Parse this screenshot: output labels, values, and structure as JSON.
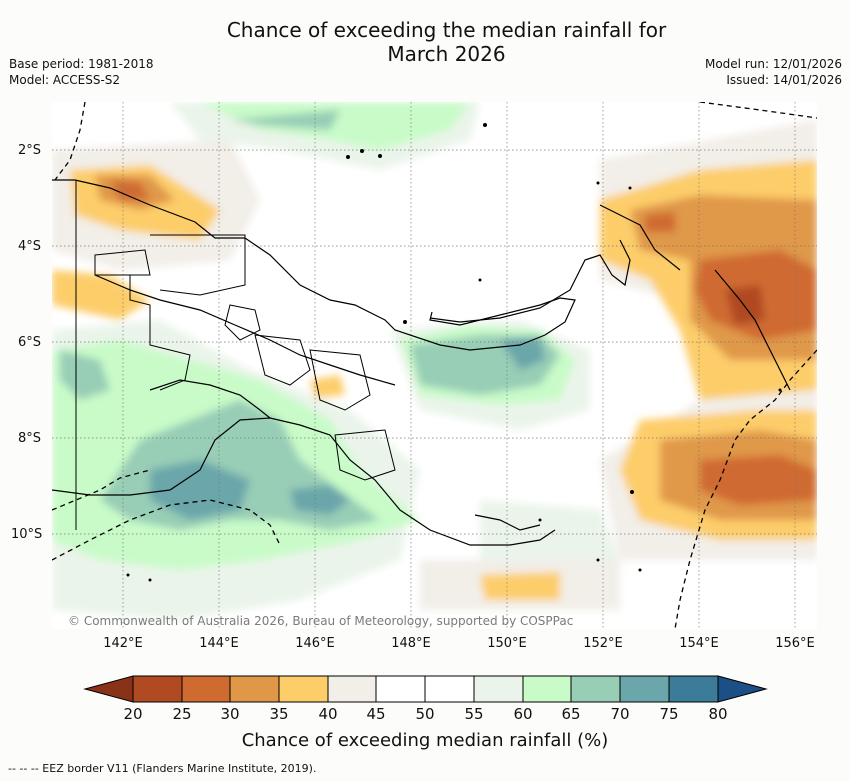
{
  "title_line1": "Chance of exceeding the median rainfall for",
  "title_line2": "March 2026",
  "base_period": "Base period: 1981-2018",
  "model": "Model: ACCESS-S2",
  "model_run": "Model run: 12/01/2026",
  "issued": "Issued: 14/01/2026",
  "copyright": "© Commonwealth of Australia 2026, Bureau of Meteorology, supported by COSPPac",
  "lat_labels": [
    "2°S",
    "4°S",
    "6°S",
    "8°S",
    "10°S"
  ],
  "lon_labels": [
    "142°E",
    "144°E",
    "146°E",
    "148°E",
    "150°E",
    "152°E",
    "154°E",
    "156°E"
  ],
  "colorbar": {
    "ticks": [
      "20",
      "25",
      "30",
      "35",
      "40",
      "45",
      "50",
      "55",
      "60",
      "65",
      "70",
      "75",
      "80"
    ],
    "colors": [
      "#8a3218",
      "#b04a22",
      "#cf6a30",
      "#e09848",
      "#fdcd6a",
      "#f2eee8",
      "#ffffff",
      "#ffffff",
      "#eaf4ea",
      "#c8fbc8",
      "#98cdb6",
      "#6aa6aa",
      "#3c7c98",
      "#1c4f86"
    ],
    "label": "Chance of exceeding median rainfall (%)"
  },
  "footer": "--  --  -- EEZ border V11 (Flanders Marine Institute, 2019)."
}
